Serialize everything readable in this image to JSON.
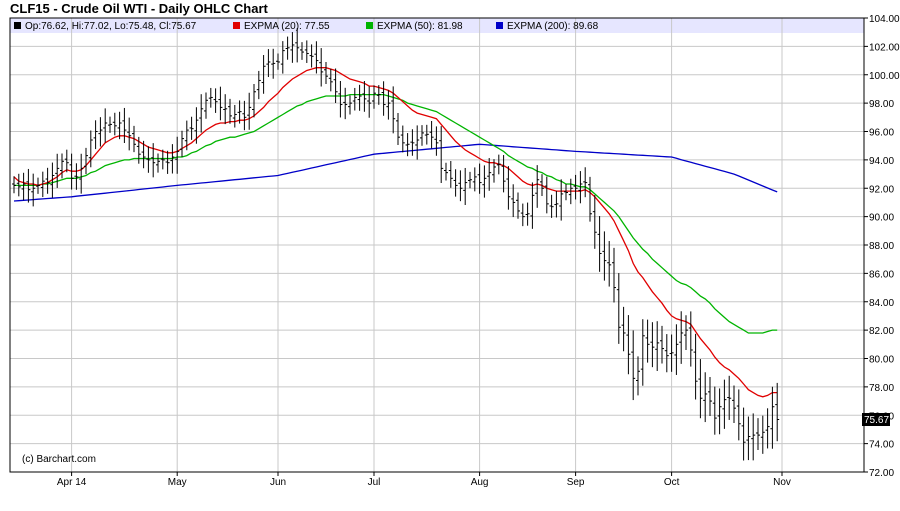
{
  "chart_data": {
    "type": "ohlc",
    "title": "CLF15 - Crude Oil WTI - Daily OHLC Chart",
    "legend": [
      {
        "label": "Op:76.62, Hi:77.02, Lo:75.48, Cl:75.67",
        "color": "#000000"
      },
      {
        "label": "EXPMA (20): 77.55",
        "color": "#e00000"
      },
      {
        "label": "EXPMA (50): 81.98",
        "color": "#00b400"
      },
      {
        "label": "EXPMA (200): 89.68",
        "color": "#0000c8"
      }
    ],
    "legend_placement": "top-left",
    "watermark": "(c) Barchart.com",
    "last_price_label": "75.67",
    "ylim": [
      72,
      104
    ],
    "y_ticks": [
      "72.00",
      "74.00",
      "76.00",
      "78.00",
      "80.00",
      "82.00",
      "84.00",
      "86.00",
      "88.00",
      "90.00",
      "92.00",
      "94.00",
      "96.00",
      "98.00",
      "100.00",
      "102.00",
      "104.00"
    ],
    "x_ticks": [
      {
        "label": "Apr 14",
        "index": 12
      },
      {
        "label": "May",
        "index": 34
      },
      {
        "label": "Jun",
        "index": 55
      },
      {
        "label": "Jul",
        "index": 75
      },
      {
        "label": "Aug",
        "index": 97
      },
      {
        "label": "Sep",
        "index": 117
      },
      {
        "label": "Oct",
        "index": 137
      },
      {
        "label": "Nov",
        "index": 160
      }
    ],
    "grid": true,
    "close": [
      92.2,
      92.1,
      92.3,
      91.9,
      92.0,
      92.2,
      92.5,
      92.4,
      92.9,
      93.4,
      93.9,
      93.8,
      92.7,
      92.8,
      93.4,
      94.3,
      95.4,
      96.0,
      96.1,
      96.6,
      96.5,
      96.4,
      96.6,
      96.1,
      95.7,
      95.1,
      94.4,
      94.2,
      94.0,
      93.8,
      93.9,
      94.0,
      93.8,
      94.2,
      94.6,
      95.5,
      96.1,
      96.2,
      96.8,
      97.6,
      98.2,
      98.4,
      98.1,
      97.7,
      97.6,
      97.1,
      97.2,
      97.4,
      97.0,
      97.7,
      98.8,
      99.6,
      100.6,
      100.9,
      100.8,
      100.9,
      101.7,
      101.9,
      102.1,
      101.9,
      101.6,
      101.5,
      101.3,
      101.0,
      100.2,
      99.9,
      99.5,
      98.8,
      97.9,
      97.9,
      98.0,
      98.4,
      98.5,
      98.3,
      98.0,
      98.7,
      98.6,
      97.9,
      98.0,
      96.9,
      95.6,
      95.2,
      95.1,
      95.2,
      95.4,
      95.9,
      95.8,
      95.6,
      95.2,
      93.4,
      93.1,
      92.7,
      92.2,
      92.0,
      92.4,
      92.6,
      92.8,
      92.4,
      92.7,
      93.1,
      93.5,
      93.7,
      92.5,
      91.4,
      91.0,
      90.4,
      90.0,
      90.2,
      91.5,
      92.6,
      92.0,
      90.9,
      90.7,
      90.9,
      91.6,
      91.7,
      92.0,
      92.0,
      92.3,
      92.4,
      90.2,
      88.9,
      87.4,
      86.9,
      86.6,
      85.0,
      82.2,
      81.8,
      80.3,
      78.6,
      79.1,
      81.6,
      81.0,
      80.8,
      81.1,
      80.7,
      80.2,
      80.4,
      81.0,
      81.8,
      82.0,
      80.6,
      78.4,
      77.2,
      77.5,
      77.0,
      75.8,
      76.6,
      77.1,
      77.2,
      76.5,
      75.4,
      74.1,
      74.5,
      74.6,
      74.6,
      74.8,
      75.2,
      76.6,
      75.7
    ],
    "ema20": [
      92.8,
      92.5,
      92.4,
      92.3,
      92.3,
      92.2,
      92.3,
      92.4,
      92.6,
      92.8,
      93.1,
      93.3,
      93.2,
      93.2,
      93.3,
      93.6,
      94.0,
      94.4,
      94.8,
      95.2,
      95.4,
      95.6,
      95.7,
      95.7,
      95.6,
      95.5,
      95.3,
      95.1,
      94.9,
      94.8,
      94.7,
      94.6,
      94.5,
      94.5,
      94.6,
      94.8,
      95.0,
      95.2,
      95.5,
      95.8,
      96.1,
      96.3,
      96.5,
      96.6,
      96.6,
      96.7,
      96.7,
      96.8,
      96.8,
      96.9,
      97.1,
      97.4,
      97.7,
      98.1,
      98.4,
      98.7,
      99.1,
      99.4,
      99.7,
      99.9,
      100.1,
      100.3,
      100.4,
      100.5,
      100.5,
      100.5,
      100.4,
      100.3,
      100.1,
      99.9,
      99.7,
      99.6,
      99.5,
      99.4,
      99.2,
      99.2,
      99.1,
      99.0,
      98.9,
      98.7,
      98.4,
      98.1,
      97.8,
      97.5,
      97.3,
      97.2,
      97.1,
      97.0,
      96.9,
      96.5,
      96.1,
      95.7,
      95.3,
      95.0,
      94.7,
      94.5,
      94.3,
      94.1,
      93.9,
      93.8,
      93.8,
      93.7,
      93.6,
      93.4,
      93.1,
      92.8,
      92.5,
      92.3,
      92.2,
      92.3,
      92.2,
      92.0,
      91.9,
      91.8,
      91.8,
      91.8,
      91.8,
      91.8,
      91.8,
      91.9,
      91.7,
      91.4,
      91.0,
      90.6,
      90.2,
      89.7,
      89.0,
      88.3,
      87.6,
      86.7,
      86.1,
      85.7,
      85.2,
      84.7,
      84.3,
      83.9,
      83.4,
      83.0,
      82.8,
      82.7,
      82.6,
      82.4,
      81.9,
      81.4,
      81.0,
      80.6,
      80.1,
      79.7,
      79.4,
      79.2,
      78.9,
      78.6,
      78.2,
      77.8,
      77.6,
      77.4,
      77.3,
      77.4,
      77.6,
      77.6
    ],
    "ema50": [
      92.2,
      92.2,
      92.2,
      92.2,
      92.2,
      92.2,
      92.3,
      92.3,
      92.4,
      92.5,
      92.6,
      92.7,
      92.7,
      92.7,
      92.8,
      92.9,
      93.1,
      93.2,
      93.4,
      93.6,
      93.7,
      93.8,
      93.9,
      94.0,
      94.0,
      94.1,
      94.1,
      94.1,
      94.1,
      94.1,
      94.1,
      94.1,
      94.1,
      94.1,
      94.2,
      94.2,
      94.3,
      94.5,
      94.6,
      94.8,
      95.0,
      95.1,
      95.3,
      95.4,
      95.5,
      95.6,
      95.6,
      95.7,
      95.8,
      95.9,
      96.0,
      96.2,
      96.4,
      96.6,
      96.8,
      97.0,
      97.2,
      97.4,
      97.6,
      97.8,
      97.9,
      98.1,
      98.2,
      98.3,
      98.4,
      98.5,
      98.5,
      98.5,
      98.5,
      98.5,
      98.6,
      98.6,
      98.6,
      98.6,
      98.6,
      98.6,
      98.6,
      98.6,
      98.5,
      98.4,
      98.3,
      98.2,
      98.0,
      97.9,
      97.8,
      97.7,
      97.6,
      97.5,
      97.4,
      97.2,
      97.0,
      96.8,
      96.6,
      96.4,
      96.2,
      96.0,
      95.8,
      95.6,
      95.4,
      95.2,
      95.0,
      94.8,
      94.6,
      94.3,
      94.1,
      93.9,
      93.7,
      93.5,
      93.4,
      93.2,
      93.1,
      92.9,
      92.8,
      92.6,
      92.5,
      92.3,
      92.3,
      92.2,
      92.1,
      92.1,
      91.9,
      91.6,
      91.3,
      91.0,
      90.7,
      90.4,
      90.0,
      89.5,
      89.0,
      88.5,
      88.1,
      87.7,
      87.4,
      87.0,
      86.7,
      86.4,
      86.1,
      85.8,
      85.5,
      85.3,
      85.2,
      85.0,
      84.7,
      84.4,
      84.2,
      83.9,
      83.5,
      83.2,
      82.9,
      82.6,
      82.4,
      82.2,
      82.0,
      81.8,
      81.8,
      81.8,
      81.8,
      81.9,
      82.0,
      82.0
    ]
  }
}
